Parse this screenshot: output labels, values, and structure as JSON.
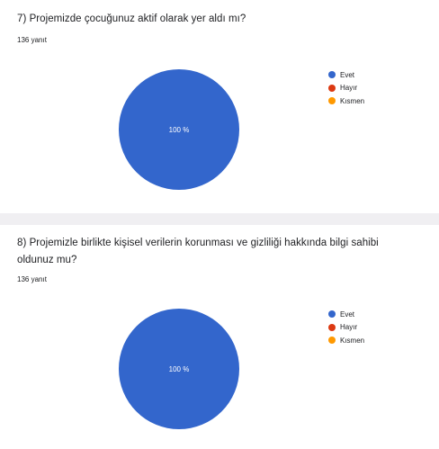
{
  "colors": {
    "evet": "#3366cc",
    "hayir": "#dc3912",
    "kismen": "#ff9900"
  },
  "questions": [
    {
      "title": "7) Projemizde çocuğunuz aktif olarak yer aldı mı?",
      "count": "136 yanıt"
    },
    {
      "title": "8) Projemizle birlikte kişisel verilerin korunması ve gizliliği hakkında bilgi sahibi oldunuz mu?",
      "count": "136 yanıt"
    }
  ],
  "chart_data": [
    {
      "type": "pie",
      "categories": [
        "Evet",
        "Hayır",
        "Kısmen"
      ],
      "values": [
        100,
        0,
        0
      ],
      "slice_labels": [
        "100 %",
        "",
        ""
      ],
      "colors": [
        "#3366cc",
        "#dc3912",
        "#ff9900"
      ],
      "legend_position": "right"
    },
    {
      "type": "pie",
      "categories": [
        "Evet",
        "Hayır",
        "Kısmen"
      ],
      "values": [
        100,
        0,
        0
      ],
      "slice_labels": [
        "100 %",
        "",
        ""
      ],
      "colors": [
        "#3366cc",
        "#dc3912",
        "#ff9900"
      ],
      "legend_position": "right"
    }
  ]
}
